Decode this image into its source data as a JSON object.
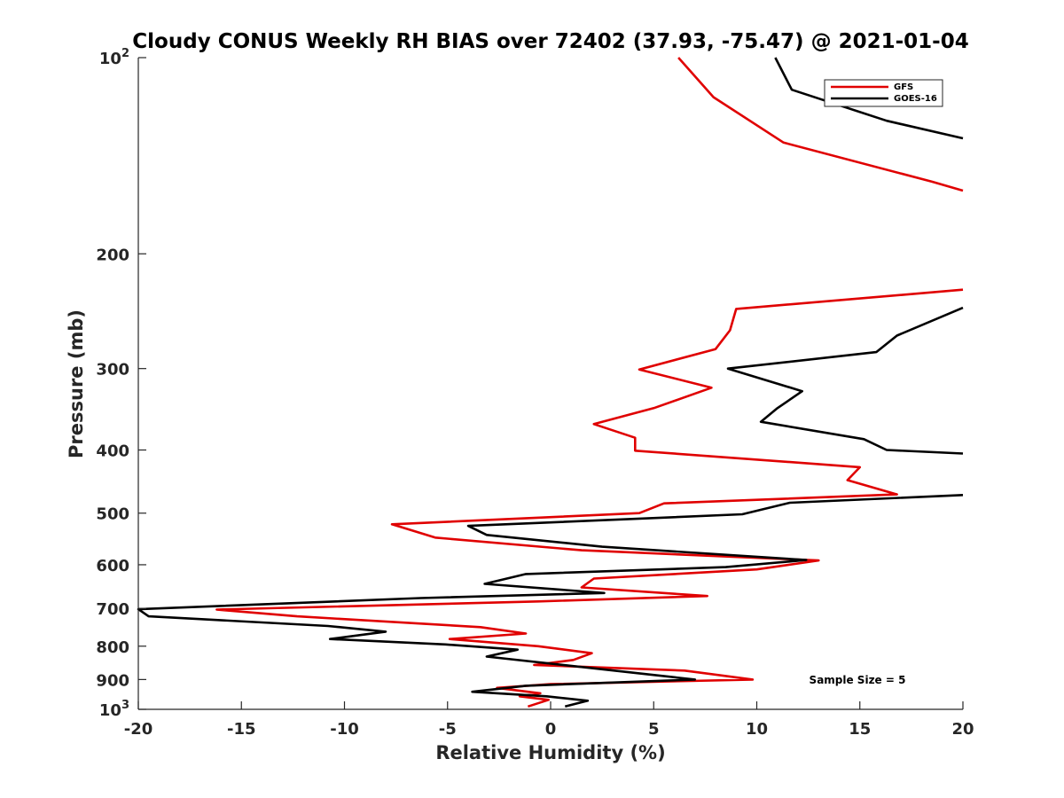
{
  "chart_data": {
    "type": "line",
    "title": "Cloudy CONUS Weekly RH BIAS over 72402 (37.93, -75.47) @ 2021-01-04",
    "xlabel": "Relative Humidity (%)",
    "ylabel": "Pressure (mb)",
    "xlim": [
      -20,
      20
    ],
    "ylim": [
      100,
      1000
    ],
    "yscale": "log",
    "y_reversed": true,
    "grid": false,
    "legend_position": "top-right",
    "x_ticks": [
      "-20",
      "-15",
      "-10",
      "-5",
      "0",
      "5",
      "10",
      "15",
      "20"
    ],
    "x_tick_values": [
      -20,
      -15,
      -10,
      -5,
      0,
      5,
      10,
      15,
      20
    ],
    "y_ticks": [
      {
        "value": 100,
        "base": "10",
        "exp": "2"
      },
      {
        "value": 200,
        "base": "200",
        "exp": ""
      },
      {
        "value": 300,
        "base": "300",
        "exp": ""
      },
      {
        "value": 400,
        "base": "400",
        "exp": ""
      },
      {
        "value": 500,
        "base": "500",
        "exp": ""
      },
      {
        "value": 600,
        "base": "600",
        "exp": ""
      },
      {
        "value": 700,
        "base": "700",
        "exp": ""
      },
      {
        "value": 800,
        "base": "800",
        "exp": ""
      },
      {
        "value": 900,
        "base": "900",
        "exp": ""
      },
      {
        "value": 1000,
        "base": "10",
        "exp": "3"
      }
    ],
    "annotation": "Sample Size = 5",
    "series": [
      {
        "name": "GFS",
        "color": "#e00000",
        "points": [
          [
            6.2,
            100
          ],
          [
            7.9,
            115
          ],
          [
            11.3,
            135
          ],
          [
            18.5,
            155
          ],
          [
            20.0,
            160
          ],
          [
            null,
            null
          ],
          [
            20.0,
            227
          ],
          [
            9.0,
            243
          ],
          [
            8.7,
            262
          ],
          [
            8.0,
            280
          ],
          [
            4.3,
            301
          ],
          [
            7.8,
            321
          ],
          [
            5.0,
            345
          ],
          [
            2.1,
            365
          ],
          [
            4.1,
            383
          ],
          [
            4.1,
            401
          ],
          [
            15.0,
            425
          ],
          [
            14.4,
            445
          ],
          [
            16.8,
            468
          ],
          [
            5.5,
            483
          ],
          [
            4.3,
            500
          ],
          [
            -7.7,
            520
          ],
          [
            -5.6,
            545
          ],
          [
            1.5,
            570
          ],
          [
            13.0,
            591
          ],
          [
            10.0,
            610
          ],
          [
            2.1,
            630
          ],
          [
            1.5,
            650
          ],
          [
            7.6,
            670
          ],
          [
            -0.6,
            683
          ],
          [
            -16.2,
            703
          ],
          [
            -12.3,
            720
          ],
          [
            -3.4,
            748
          ],
          [
            -1.2,
            765
          ],
          [
            -4.9,
            780
          ],
          [
            -0.6,
            800
          ],
          [
            2.0,
            820
          ],
          [
            1.1,
            840
          ],
          [
            -0.8,
            855
          ],
          [
            6.5,
            872
          ],
          [
            9.8,
            900
          ],
          [
            0.0,
            915
          ],
          [
            -2.6,
            927
          ],
          [
            -0.5,
            945
          ],
          [
            -1.5,
            955
          ],
          [
            -0.1,
            967
          ],
          [
            -1.1,
            990
          ]
        ]
      },
      {
        "name": "GOES-16",
        "color": "#000000",
        "points": [
          [
            10.9,
            100
          ],
          [
            11.7,
            112
          ],
          [
            16.3,
            125
          ],
          [
            20.0,
            133
          ],
          [
            null,
            null
          ],
          [
            20.0,
            242
          ],
          [
            16.8,
            267
          ],
          [
            15.8,
            283
          ],
          [
            8.6,
            300
          ],
          [
            12.2,
            325
          ],
          [
            11.0,
            345
          ],
          [
            10.2,
            362
          ],
          [
            15.2,
            385
          ],
          [
            16.3,
            400
          ],
          [
            20.0,
            405
          ],
          [
            null,
            null
          ],
          [
            20.0,
            469
          ],
          [
            11.6,
            482
          ],
          [
            9.3,
            502
          ],
          [
            -4.0,
            523
          ],
          [
            -3.1,
            540
          ],
          [
            2.5,
            563
          ],
          [
            12.4,
            590
          ],
          [
            8.5,
            605
          ],
          [
            -1.2,
            620
          ],
          [
            -3.2,
            642
          ],
          [
            2.6,
            663
          ],
          [
            -6.3,
            675
          ],
          [
            -20.0,
            702
          ],
          [
            -19.5,
            720
          ],
          [
            -10.8,
            745
          ],
          [
            -8.0,
            760
          ],
          [
            -10.7,
            780
          ],
          [
            -5.1,
            795
          ],
          [
            -1.6,
            810
          ],
          [
            -3.1,
            830
          ],
          [
            7.0,
            900
          ],
          [
            -1.2,
            920
          ],
          [
            -3.8,
            940
          ],
          [
            -0.2,
            955
          ],
          [
            1.8,
            970
          ],
          [
            0.7,
            990
          ]
        ]
      }
    ]
  }
}
